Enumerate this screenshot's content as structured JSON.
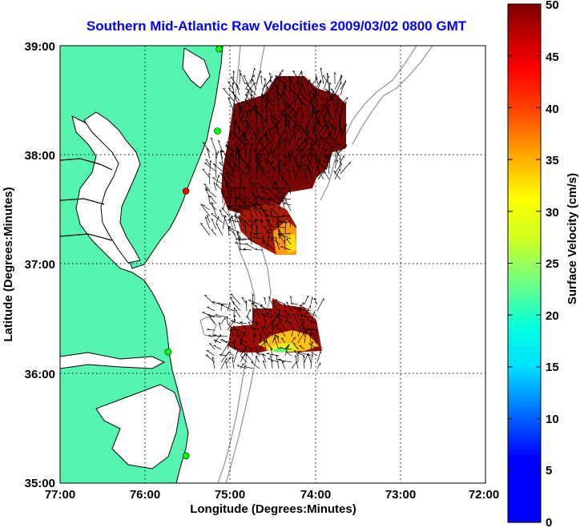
{
  "title": "Southern Mid-Atlantic Raw Velocities 2009/03/02 0800 GMT",
  "x_axis": {
    "label": "Longitude (Degrees:Minutes)",
    "ticks": [
      "77:00",
      "76:00",
      "75:00",
      "74:00",
      "73:00",
      "72:00"
    ]
  },
  "y_axis": {
    "label": "Latitude (Degrees:Minutes)",
    "ticks": [
      "39:00",
      "38:00",
      "37:00",
      "36:00",
      "35:00"
    ]
  },
  "colorbar": {
    "label": "Surface Velocity (cm/s)",
    "ticks": [
      "50",
      "45",
      "40",
      "35",
      "30",
      "25",
      "20",
      "15",
      "10",
      "5",
      "0"
    ],
    "min": 0,
    "max": 50
  },
  "colors": {
    "land": "#55f5b0",
    "coast": "#000000",
    "bathymetry": "#999999",
    "title": "#0000ff",
    "grid": "#000000"
  },
  "map_extent": {
    "lon_min": -77,
    "lon_max": -72,
    "lat_min": 35,
    "lat_max": 39,
    "grid": "dotted"
  },
  "stations": [
    {
      "lon": -75.13,
      "lat": 38.97,
      "color": "#00ff00"
    },
    {
      "lon": -75.15,
      "lat": 38.22,
      "color": "#00ff00"
    },
    {
      "lon": -75.52,
      "lat": 37.67,
      "color": "#ff0000"
    },
    {
      "lon": -75.73,
      "lat": 36.2,
      "color": "#00ff00"
    },
    {
      "lon": -75.52,
      "lat": 35.25,
      "color": "#00ff00"
    }
  ]
}
